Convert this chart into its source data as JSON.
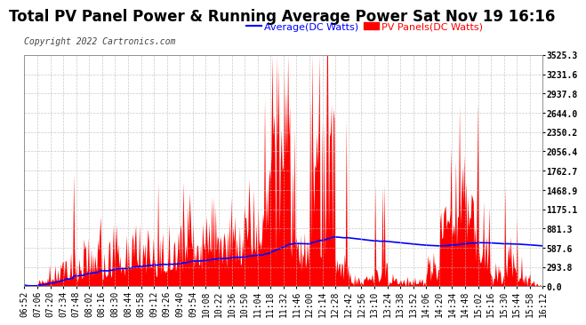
{
  "title": "Total PV Panel Power & Running Average Power Sat Nov 19 16:16",
  "copyright": "Copyright 2022 Cartronics.com",
  "legend_avg": "Average(DC Watts)",
  "legend_pv": "PV Panels(DC Watts)",
  "yticks": [
    0.0,
    293.8,
    587.6,
    881.3,
    1175.1,
    1468.9,
    1762.7,
    2056.4,
    2350.2,
    2644.0,
    2937.8,
    3231.6,
    3525.3
  ],
  "ylim": [
    0,
    3525.3
  ],
  "xtick_labels": [
    "06:52",
    "07:06",
    "07:20",
    "07:34",
    "07:48",
    "08:02",
    "08:16",
    "08:30",
    "08:44",
    "08:58",
    "09:12",
    "09:26",
    "09:40",
    "09:54",
    "10:08",
    "10:22",
    "10:36",
    "10:50",
    "11:04",
    "11:18",
    "11:32",
    "11:46",
    "12:00",
    "12:14",
    "12:28",
    "12:42",
    "12:56",
    "13:10",
    "13:24",
    "13:38",
    "13:52",
    "14:06",
    "14:20",
    "14:34",
    "14:48",
    "15:02",
    "15:16",
    "15:30",
    "15:44",
    "15:58",
    "16:12"
  ],
  "background_color": "#ffffff",
  "plot_bg_color": "#ffffff",
  "grid_color": "#bbbbbb",
  "pv_color": "#ff0000",
  "avg_color": "#0000ff",
  "title_fontsize": 12,
  "copyright_fontsize": 7,
  "tick_fontsize": 7,
  "legend_fontsize": 8
}
